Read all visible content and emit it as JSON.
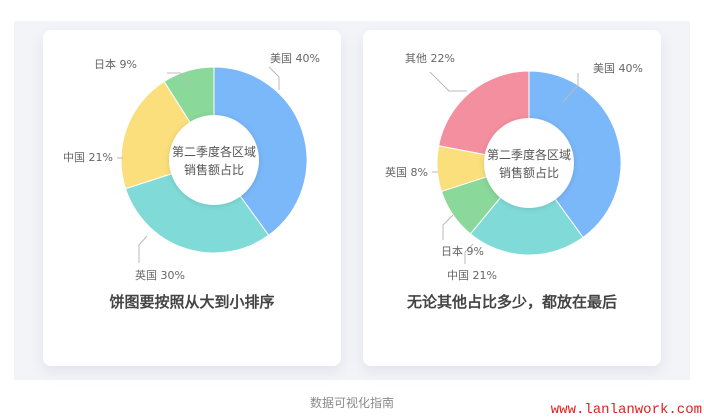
{
  "chart_data": [
    {
      "type": "pie",
      "donut": true,
      "center_label": [
        "第二季度各区域",
        "销售额占比"
      ],
      "title": "饼图要按照从大到小排序",
      "slices": [
        {
          "label": "美国",
          "value": 40,
          "color": "#7ab8f9"
        },
        {
          "label": "英国",
          "value": 30,
          "color": "#80dbd8"
        },
        {
          "label": "中国",
          "value": 21,
          "color": "#fbdf7c"
        },
        {
          "label": "日本",
          "value": 9,
          "color": "#8ad89a"
        }
      ]
    },
    {
      "type": "pie",
      "donut": true,
      "center_label": [
        "第二季度各区域",
        "销售额占比"
      ],
      "title": "无论其他占比多少，都放在最后",
      "slices": [
        {
          "label": "美国",
          "value": 40,
          "color": "#7ab8f9"
        },
        {
          "label": "中国",
          "value": 21,
          "color": "#80dbd8"
        },
        {
          "label": "日本",
          "value": 9,
          "color": "#8ad89a"
        },
        {
          "label": "英国",
          "value": 8,
          "color": "#fbdf7c"
        },
        {
          "label": "其他",
          "value": 22,
          "color": "#f48f9f"
        }
      ]
    }
  ],
  "caption": "数据可视化指南",
  "watermark": "www.lanlanwork.com"
}
